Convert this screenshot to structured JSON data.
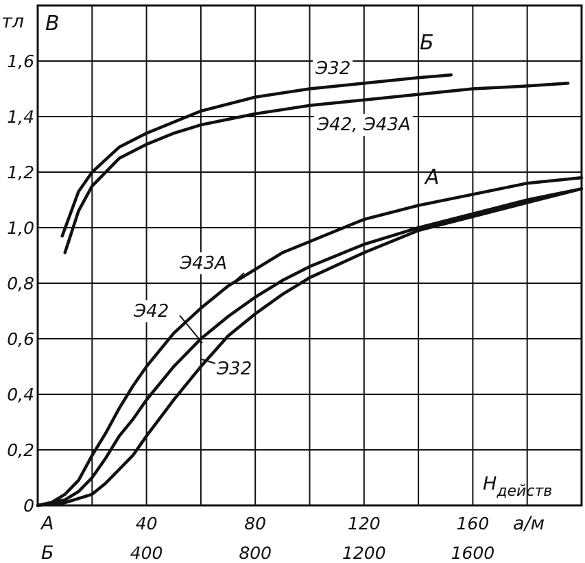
{
  "chart_data": {
    "type": "line",
    "y_axis": {
      "symbol": "B",
      "unit": "тл",
      "ylim": [
        0,
        1.8
      ],
      "ticks": [
        0,
        0.2,
        0.4,
        0.6,
        0.8,
        1.0,
        1.2,
        1.4,
        1.6
      ],
      "tick_labels": [
        "0",
        "0,2",
        "0,4",
        "0,6",
        "0,8",
        "1,0",
        "1,2",
        "1,4",
        "1,6"
      ]
    },
    "x_axis": {
      "symbol": "Hдейств",
      "unit": "а/м",
      "scale_A": {
        "row_label": "А",
        "xlim": [
          0,
          200
        ],
        "ticks": [
          40,
          80,
          120,
          160
        ],
        "tick_labels": [
          "40",
          "80",
          "120",
          "160"
        ]
      },
      "scale_B": {
        "row_label": "Б",
        "xlim": [
          0,
          2000
        ],
        "ticks": [
          400,
          800,
          1200,
          1600
        ],
        "tick_labels": [
          "400",
          "800",
          "1200",
          "1600"
        ]
      }
    },
    "grid": true,
    "groups": [
      {
        "label": "Б",
        "scale": "B",
        "series": [
          {
            "name": "Э32",
            "points": [
              [
                90,
                0.97
              ],
              [
                150,
                1.13
              ],
              [
                200,
                1.2
              ],
              [
                300,
                1.29
              ],
              [
                400,
                1.34
              ],
              [
                500,
                1.38
              ],
              [
                600,
                1.42
              ],
              [
                800,
                1.47
              ],
              [
                1000,
                1.5
              ],
              [
                1200,
                1.52
              ],
              [
                1400,
                1.54
              ],
              [
                1520,
                1.55
              ]
            ]
          },
          {
            "name": "Э42, Э43А",
            "points": [
              [
                100,
                0.91
              ],
              [
                150,
                1.06
              ],
              [
                200,
                1.15
              ],
              [
                300,
                1.25
              ],
              [
                400,
                1.3
              ],
              [
                500,
                1.34
              ],
              [
                600,
                1.37
              ],
              [
                800,
                1.41
              ],
              [
                1000,
                1.44
              ],
              [
                1200,
                1.46
              ],
              [
                1400,
                1.48
              ],
              [
                1600,
                1.5
              ],
              [
                1800,
                1.51
              ],
              [
                1950,
                1.52
              ]
            ]
          }
        ]
      },
      {
        "label": "А",
        "scale": "A",
        "series": [
          {
            "name": "Э43А",
            "points": [
              [
                0,
                0
              ],
              [
                5,
                0.01
              ],
              [
                10,
                0.04
              ],
              [
                15,
                0.09
              ],
              [
                20,
                0.18
              ],
              [
                25,
                0.26
              ],
              [
                30,
                0.35
              ],
              [
                35,
                0.43
              ],
              [
                40,
                0.5
              ],
              [
                50,
                0.62
              ],
              [
                60,
                0.71
              ],
              [
                70,
                0.79
              ],
              [
                80,
                0.85
              ],
              [
                90,
                0.91
              ],
              [
                100,
                0.95
              ],
              [
                110,
                0.99
              ],
              [
                120,
                1.03
              ],
              [
                140,
                1.08
              ],
              [
                160,
                1.12
              ],
              [
                180,
                1.16
              ],
              [
                200,
                1.18
              ]
            ]
          },
          {
            "name": "Э42",
            "points": [
              [
                0,
                0
              ],
              [
                5,
                0.01
              ],
              [
                10,
                0.02
              ],
              [
                15,
                0.05
              ],
              [
                20,
                0.1
              ],
              [
                25,
                0.17
              ],
              [
                30,
                0.25
              ],
              [
                35,
                0.31
              ],
              [
                40,
                0.38
              ],
              [
                50,
                0.5
              ],
              [
                60,
                0.6
              ],
              [
                70,
                0.68
              ],
              [
                80,
                0.75
              ],
              [
                90,
                0.81
              ],
              [
                100,
                0.86
              ],
              [
                120,
                0.94
              ],
              [
                140,
                1.0
              ],
              [
                160,
                1.05
              ],
              [
                180,
                1.1
              ],
              [
                200,
                1.14
              ]
            ]
          },
          {
            "name": "Э32",
            "points": [
              [
                0,
                0
              ],
              [
                10,
                0.01
              ],
              [
                20,
                0.04
              ],
              [
                25,
                0.08
              ],
              [
                30,
                0.13
              ],
              [
                35,
                0.18
              ],
              [
                40,
                0.25
              ],
              [
                50,
                0.38
              ],
              [
                60,
                0.5
              ],
              [
                70,
                0.61
              ],
              [
                80,
                0.69
              ],
              [
                90,
                0.76
              ],
              [
                100,
                0.82
              ],
              [
                120,
                0.91
              ],
              [
                140,
                0.99
              ],
              [
                160,
                1.04
              ],
              [
                180,
                1.09
              ],
              [
                200,
                1.14
              ]
            ]
          }
        ]
      }
    ]
  }
}
